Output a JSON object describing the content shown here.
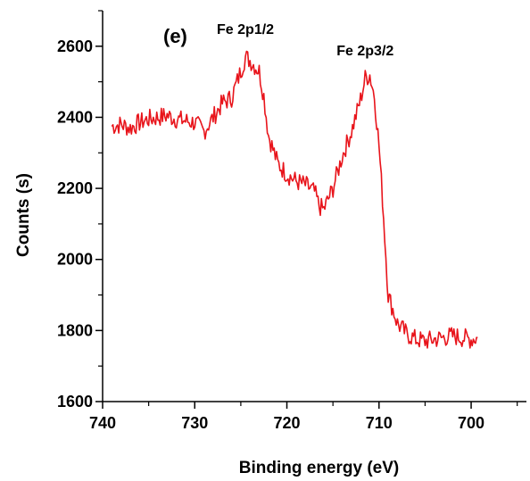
{
  "chart_data": {
    "type": "line",
    "panel_label": "(e)",
    "xlabel": "Binding energy (eV)",
    "ylabel": "Counts (s)",
    "xlim": [
      740,
      694
    ],
    "ylim": [
      1600,
      2700
    ],
    "x_ticks": [
      740,
      730,
      720,
      710,
      700
    ],
    "y_ticks": [
      1600,
      1800,
      2000,
      2200,
      2400,
      2600
    ],
    "line_color": "#e8141b",
    "annotations": [
      {
        "text": "Fe 2p1/2",
        "x": 724.5,
        "y": 2635
      },
      {
        "text": "Fe 2p3/2",
        "x": 711.5,
        "y": 2575
      }
    ],
    "series": [
      {
        "x": [
          739,
          738,
          737,
          736,
          735,
          734,
          733,
          732,
          731,
          730,
          729,
          728,
          727,
          726,
          725,
          724.5,
          724,
          723.5,
          723,
          722.5,
          722,
          721,
          720,
          719,
          718,
          717,
          716.5,
          716,
          715,
          714,
          713,
          712,
          711.5,
          711,
          710.5,
          710,
          709.5,
          709,
          708.5,
          708,
          707,
          706,
          705,
          704,
          703,
          702,
          701,
          700,
          699.3
        ],
        "y": [
          2375,
          2380,
          2370,
          2385,
          2395,
          2400,
          2405,
          2395,
          2390,
          2385,
          2360,
          2400,
          2440,
          2455,
          2530,
          2570,
          2560,
          2545,
          2530,
          2460,
          2350,
          2270,
          2240,
          2220,
          2210,
          2190,
          2150,
          2140,
          2200,
          2290,
          2360,
          2450,
          2510,
          2520,
          2460,
          2320,
          2120,
          1900,
          1860,
          1820,
          1790,
          1775,
          1770,
          1775,
          1780,
          1785,
          1780,
          1775,
          1780
        ]
      }
    ]
  }
}
